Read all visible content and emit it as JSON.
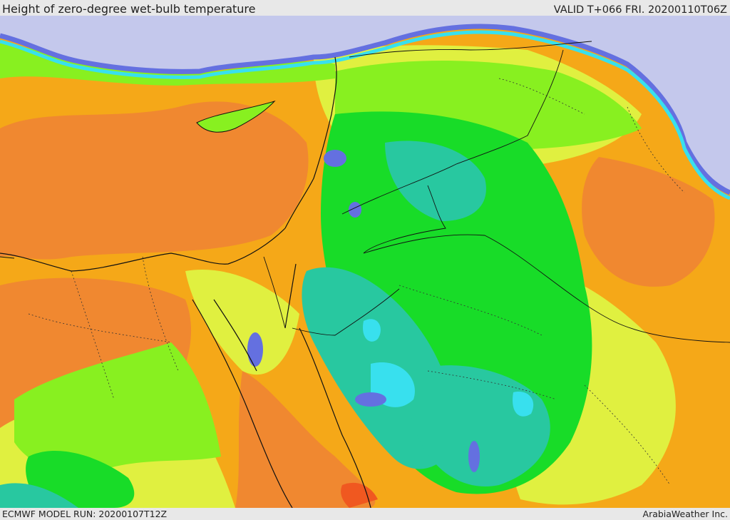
{
  "header": {
    "title": "Height of zero-degree wet-bulb temperature",
    "valid": "VALID T+066 FRI. 20200110T06Z"
  },
  "footer": {
    "model_run": "ECMWF MODEL RUN: 20200107T12Z",
    "credit": "ArabiaWeather Inc."
  },
  "map": {
    "colors": {
      "sea": "#c4c8ec",
      "blue": "#6470e0",
      "cyan": "#38e0ee",
      "teal": "#28c8a0",
      "green": "#18dc28",
      "lime": "#88f020",
      "yellow": "#e0f040",
      "orange_light": "#f5a818",
      "orange": "#f08830",
      "red": "#f05820",
      "border": "#111111"
    }
  }
}
